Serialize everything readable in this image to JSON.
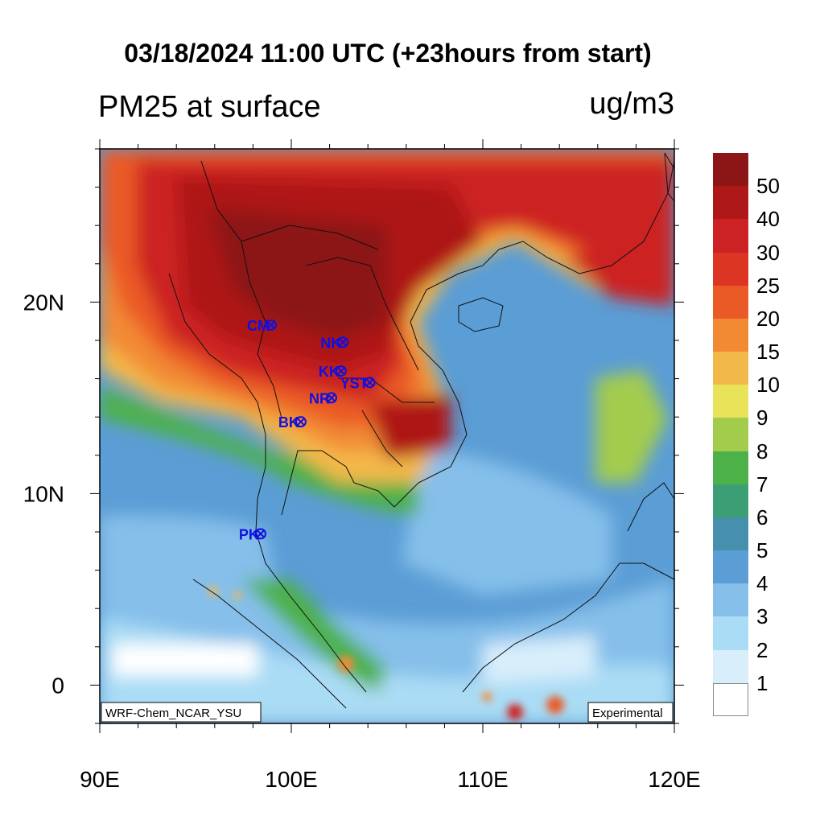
{
  "title": "03/18/2024 11:00 UTC (+23hours from start)",
  "left_string": "PM25 at surface",
  "right_string": "ug/m3",
  "x_axis": {
    "ticks": [
      "90E",
      "100E",
      "110E",
      "120E"
    ],
    "values": [
      90,
      100,
      110,
      120
    ]
  },
  "y_axis": {
    "ticks": [
      "20N",
      "10N",
      "0"
    ],
    "values": [
      20,
      10,
      0
    ]
  },
  "extent": {
    "lon": [
      90,
      120
    ],
    "lat": [
      -2,
      28
    ]
  },
  "stations": [
    {
      "name": "CM",
      "lon": 98.95,
      "lat": 18.8
    },
    {
      "name": "NK",
      "lon": 102.7,
      "lat": 17.9
    },
    {
      "name": "KK",
      "lon": 102.6,
      "lat": 16.4
    },
    {
      "name": "YST",
      "lon": 104.1,
      "lat": 15.8
    },
    {
      "name": "NR",
      "lon": 102.1,
      "lat": 15.0
    },
    {
      "name": "BK",
      "lon": 100.5,
      "lat": 13.75
    },
    {
      "name": "PK",
      "lon": 98.4,
      "lat": 7.9
    }
  ],
  "station_color": "#1010e0",
  "colorbar": {
    "labels": [
      "50",
      "40",
      "30",
      "25",
      "20",
      "15",
      "10",
      "9",
      "8",
      "7",
      "6",
      "5",
      "4",
      "3",
      "2",
      "1"
    ],
    "colors": [
      "#8c1616",
      "#ae1818",
      "#cc2224",
      "#dd3524",
      "#ea5a26",
      "#f28a34",
      "#f3b84a",
      "#e9e35a",
      "#a3cc4d",
      "#4db14a",
      "#3c9e74",
      "#4790ad",
      "#5b9dd5",
      "#85bfea",
      "#aadcf5",
      "#d8eefb",
      "#ffffff"
    ]
  },
  "footer_left": "WRF-Chem_NCAR_YSU",
  "footer_right": "Experimental"
}
